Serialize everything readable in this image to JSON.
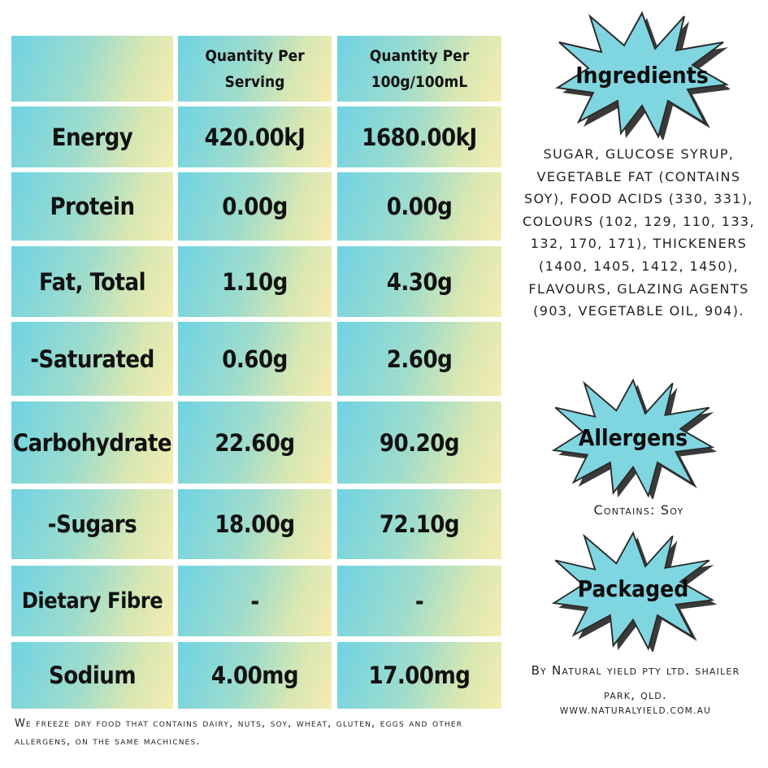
{
  "table": {
    "headers": [
      "",
      "Quantity Per\nServing",
      "Quantity Per\n100g/100mL"
    ],
    "rows": [
      {
        "label": "Energy",
        "serving": "420.00kJ",
        "per100": "1680.00kJ"
      },
      {
        "label": "Protein",
        "serving": "0.00g",
        "per100": "0.00g"
      },
      {
        "label": "Fat, Total",
        "serving": "1.10g",
        "per100": "4.30g"
      },
      {
        "label": "-Saturated",
        "serving": "0.60g",
        "per100": "2.60g"
      },
      {
        "label": "Carbohydrate",
        "serving": "22.60g",
        "per100": "90.20g"
      },
      {
        "label": "-Sugars",
        "serving": "18.00g",
        "per100": "72.10g"
      },
      {
        "label": "Dietary Fibre",
        "serving": "-",
        "per100": "-"
      },
      {
        "label": "Sodium",
        "serving": "4.00mg",
        "per100": "17.00mg"
      }
    ]
  },
  "footnote": "We freeze dry food that contains dairy, nuts, soy, wheat, gluten, eggs and other allergens, on the same machicnes.",
  "ingredients": {
    "title": "Ingredients",
    "text": "SUGAR, GLUCOSE SYRUP, VEGETABLE FAT (CONTAINS SOY), FOOD ACIDS (330, 331), COLOURS (102, 129, 110, 133, 132, 170, 171), THICKENERS (1400, 1405, 1412, 1450), FLAVOURS, GLAZING AGENTS (903, VEGETABLE OIL, 904)."
  },
  "allergens": {
    "title": "Allergens",
    "text": "Contains: Soy"
  },
  "packaged": {
    "title": "Packaged",
    "text": "By Natural yield pty ltd.  shailer park, qld.",
    "website": "WWW.NATURALYIELD.COM.AU"
  },
  "colors": {
    "gradient_start": "#6fd3e4",
    "gradient_end": "#f6ecb1",
    "burst_fill": "#7fd6e0",
    "burst_shadow": "#3a3a3a"
  }
}
